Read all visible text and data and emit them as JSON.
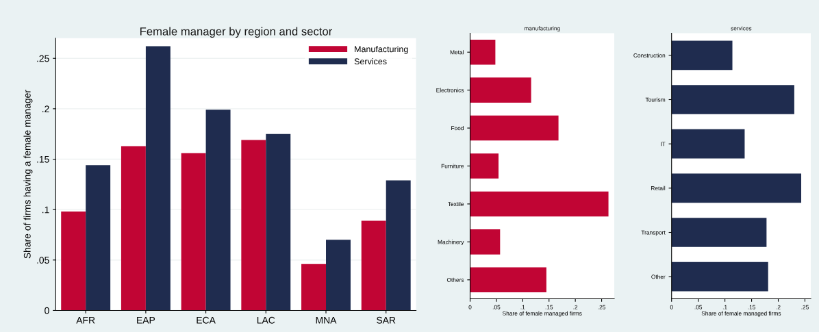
{
  "chart_data": [
    {
      "type": "bar",
      "title": "Female manager by region and sector",
      "ylabel": "Share of firms having a female manager",
      "categories": [
        "AFR",
        "EAP",
        "ECA",
        "LAC",
        "MNA",
        "SAR"
      ],
      "series": [
        {
          "name": "Manufacturing",
          "color": "#c10534",
          "values": [
            0.098,
            0.163,
            0.156,
            0.169,
            0.046,
            0.089
          ]
        },
        {
          "name": "Services",
          "color": "#1f2c4f",
          "values": [
            0.144,
            0.262,
            0.199,
            0.175,
            0.07,
            0.129
          ]
        }
      ],
      "ylim": [
        0,
        0.27
      ],
      "yticks": [
        0,
        {
          "value": 0.05,
          "label": ".05"
        },
        {
          "value": 0.1,
          "label": ".1"
        },
        {
          "value": 0.15,
          "label": ".15"
        },
        {
          "value": 0.2,
          "label": ".2"
        },
        {
          "value": 0.25,
          "label": ".25"
        }
      ],
      "grid": "y",
      "legend": "top right"
    },
    {
      "type": "bar",
      "orientation": "horizontal",
      "title": "manufacturing",
      "xlabel": "Share of female managed firms",
      "categories": [
        "Metal",
        "Electronics",
        "Food",
        "Furniture",
        "Textile",
        "Machinery",
        "Others"
      ],
      "series": [
        {
          "color": "#c10534",
          "values": [
            0.048,
            0.116,
            0.168,
            0.054,
            0.263,
            0.057,
            0.145
          ]
        }
      ],
      "xlim": [
        0,
        0.274
      ],
      "xticks": [
        0,
        {
          "value": 0.05,
          "label": ".05"
        },
        {
          "value": 0.1,
          "label": ".1"
        },
        {
          "value": 0.15,
          "label": ".15"
        },
        {
          "value": 0.2,
          "label": ".2"
        },
        {
          "value": 0.25,
          "label": ".25"
        }
      ]
    },
    {
      "type": "bar",
      "orientation": "horizontal",
      "title": "services",
      "xlabel": "Share of female managed firms",
      "categories": [
        "Construction",
        "Tourism",
        "IT",
        "Retail",
        "Transport",
        "Other"
      ],
      "series": [
        {
          "color": "#1f2c4f",
          "values": [
            0.114,
            0.23,
            0.137,
            0.243,
            0.178,
            0.181
          ]
        }
      ],
      "xlim": [
        0,
        0.261
      ],
      "xticks": [
        0,
        {
          "value": 0.05,
          "label": ".05"
        },
        {
          "value": 0.1,
          "label": ".1"
        },
        {
          "value": 0.15,
          "label": ".15"
        },
        {
          "value": 0.2,
          "label": ".2"
        },
        {
          "value": 0.25,
          "label": ".25"
        }
      ]
    }
  ]
}
